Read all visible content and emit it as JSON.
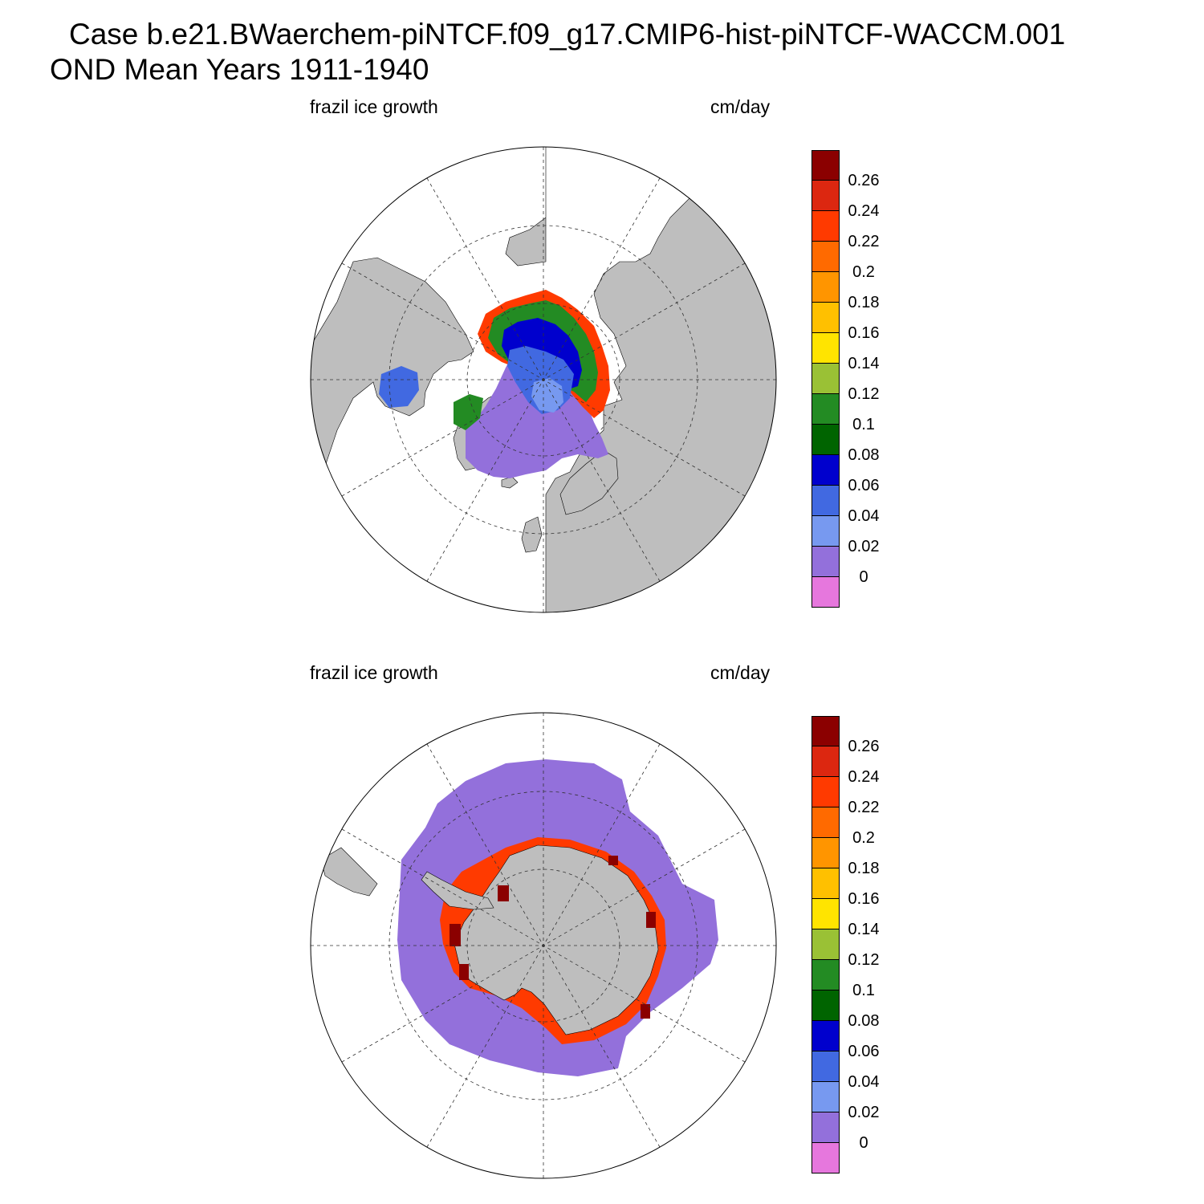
{
  "title": {
    "line1": "Case b.e21.BWaerchem-piNTCF.f09_g17.CMIP6-hist-piNTCF-WACCM.001",
    "line2": "OND Mean   Years 1911-1940"
  },
  "panels": [
    {
      "id": "north",
      "variable": "frazil ice growth",
      "units": "cm/day",
      "projection": "north-polar-stereographic"
    },
    {
      "id": "south",
      "variable": "frazil ice growth",
      "units": "cm/day",
      "projection": "south-polar-stereographic"
    }
  ],
  "colors": {
    "land": "#bebebe",
    "ocean_no_data": "#ffffff"
  },
  "colorbar": {
    "colors": [
      "#8b0000",
      "#dc2710",
      "#ff3a00",
      "#ff6a00",
      "#ff9500",
      "#ffc000",
      "#ffe400",
      "#9ac135",
      "#238b23",
      "#006400",
      "#0000cd",
      "#4169e1",
      "#7799f0",
      "#9370db",
      "#e677dd"
    ],
    "labels": [
      "0.26",
      "0.24",
      "0.22",
      "0.2",
      "0.18",
      "0.16",
      "0.14",
      "0.12",
      "0.1",
      "0.08",
      "0.06",
      "0.04",
      "0.02",
      "0"
    ]
  }
}
